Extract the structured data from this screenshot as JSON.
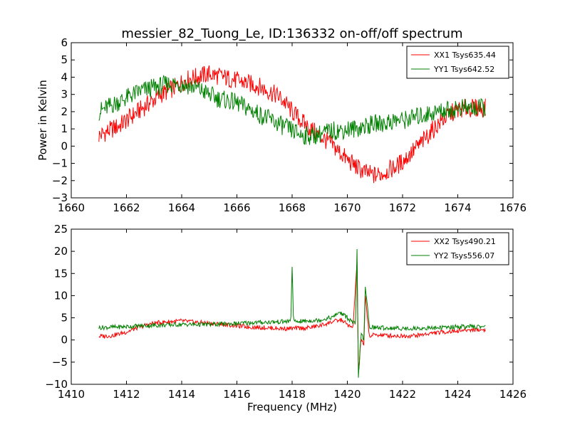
{
  "figure": {
    "title": "messier_82_Tuong_Le, ID:136332 on-off/off spectrum",
    "xlabel": "Frequency (MHz)"
  },
  "chart_data": [
    {
      "type": "line",
      "title": "messier_82_Tuong_Le, ID:136332 on-off/off spectrum",
      "xlabel": "",
      "ylabel": "Power in Kelvin",
      "xlim": [
        1660,
        1676
      ],
      "ylim": [
        -3,
        6
      ],
      "xticks": [
        1660,
        1662,
        1664,
        1666,
        1668,
        1670,
        1672,
        1674,
        1676
      ],
      "yticks": [
        -3,
        -2,
        -1,
        0,
        1,
        2,
        3,
        4,
        5,
        6
      ],
      "grid": false,
      "legend_position": "top-right",
      "series": [
        {
          "name": "XX1 Tsys635.44",
          "color": "#ff0000",
          "x": [
            1661.0,
            1661.25,
            1661.5,
            1661.75,
            1662.0,
            1662.25,
            1662.5,
            1662.75,
            1663.0,
            1663.25,
            1663.5,
            1663.75,
            1664.0,
            1664.25,
            1664.5,
            1664.75,
            1665.0,
            1665.25,
            1665.5,
            1665.75,
            1666.0,
            1666.25,
            1666.5,
            1666.75,
            1667.0,
            1667.25,
            1667.5,
            1667.75,
            1668.0,
            1668.25,
            1668.5,
            1668.75,
            1669.0,
            1669.25,
            1669.5,
            1669.75,
            1670.0,
            1670.25,
            1670.5,
            1670.75,
            1671.0,
            1671.25,
            1671.5,
            1671.75,
            1672.0,
            1672.25,
            1672.5,
            1672.75,
            1673.0,
            1673.25,
            1673.5,
            1673.75,
            1674.0,
            1674.25,
            1674.5,
            1674.75,
            1675.0
          ],
          "y": [
            0.6,
            0.8,
            1.0,
            1.2,
            1.5,
            1.8,
            2.1,
            2.4,
            2.7,
            3.0,
            3.2,
            3.4,
            3.7,
            3.9,
            4.0,
            4.1,
            4.2,
            4.1,
            4.0,
            3.9,
            3.8,
            3.7,
            3.6,
            3.5,
            3.3,
            3.1,
            2.9,
            2.5,
            2.0,
            1.6,
            1.2,
            0.9,
            0.6,
            0.3,
            0.0,
            -0.4,
            -0.8,
            -1.1,
            -1.4,
            -1.6,
            -1.7,
            -1.6,
            -1.4,
            -1.2,
            -0.9,
            -0.5,
            -0.1,
            0.3,
            0.8,
            1.2,
            1.6,
            1.9,
            2.1,
            2.2,
            2.2,
            2.2,
            2.2
          ]
        },
        {
          "name": "YY1 Tsys642.52",
          "color": "#008000",
          "x": [
            1661.0,
            1661.25,
            1661.5,
            1661.75,
            1662.0,
            1662.25,
            1662.5,
            1662.75,
            1663.0,
            1663.25,
            1663.5,
            1663.75,
            1664.0,
            1664.25,
            1664.5,
            1664.75,
            1665.0,
            1665.25,
            1665.5,
            1665.75,
            1666.0,
            1666.25,
            1666.5,
            1666.75,
            1667.0,
            1667.25,
            1667.5,
            1667.75,
            1668.0,
            1668.25,
            1668.5,
            1668.75,
            1669.0,
            1669.25,
            1669.5,
            1669.75,
            1670.0,
            1670.25,
            1670.5,
            1670.75,
            1671.0,
            1671.25,
            1671.5,
            1671.75,
            1672.0,
            1672.25,
            1672.5,
            1672.75,
            1673.0,
            1673.25,
            1673.5,
            1673.75,
            1674.0,
            1674.25,
            1674.5,
            1674.75,
            1675.0
          ],
          "y": [
            2.0,
            2.2,
            2.4,
            2.6,
            2.8,
            3.0,
            3.2,
            3.3,
            3.4,
            3.5,
            3.6,
            3.6,
            3.6,
            3.5,
            3.4,
            3.2,
            3.0,
            2.8,
            2.7,
            2.6,
            2.5,
            2.3,
            2.1,
            1.9,
            1.7,
            1.5,
            1.3,
            1.1,
            0.9,
            0.7,
            0.6,
            0.6,
            0.7,
            0.8,
            0.9,
            0.9,
            1.0,
            1.0,
            1.1,
            1.2,
            1.3,
            1.3,
            1.4,
            1.5,
            1.5,
            1.6,
            1.7,
            1.8,
            1.9,
            2.0,
            2.1,
            2.1,
            2.2,
            2.2,
            2.2,
            2.2,
            2.2
          ]
        }
      ]
    },
    {
      "type": "line",
      "title": "",
      "xlabel": "Frequency (MHz)",
      "ylabel": "",
      "xlim": [
        1410,
        1426
      ],
      "ylim": [
        -10,
        25
      ],
      "xticks": [
        1410,
        1412,
        1414,
        1416,
        1418,
        1420,
        1422,
        1424,
        1426
      ],
      "yticks": [
        -10,
        -5,
        0,
        5,
        10,
        15,
        20,
        25
      ],
      "grid": false,
      "legend_position": "top-right",
      "series": [
        {
          "name": "XX2 Tsys490.21",
          "color": "#ff0000",
          "x": [
            1411.0,
            1411.5,
            1412.0,
            1412.5,
            1413.0,
            1413.5,
            1414.0,
            1414.5,
            1415.0,
            1415.5,
            1416.0,
            1416.5,
            1417.0,
            1417.5,
            1418.0,
            1418.5,
            1419.0,
            1419.5,
            1419.8,
            1420.0,
            1420.2,
            1420.35,
            1420.4,
            1420.5,
            1420.6,
            1420.65,
            1420.8,
            1421.0,
            1421.5,
            1422.0,
            1422.5,
            1423.0,
            1423.5,
            1424.0,
            1424.5,
            1425.0
          ],
          "y": [
            0.8,
            1.0,
            1.8,
            3.0,
            3.8,
            4.1,
            4.3,
            4.0,
            3.8,
            3.5,
            3.2,
            2.9,
            2.8,
            2.6,
            2.6,
            2.7,
            3.2,
            4.2,
            4.5,
            3.5,
            2.5,
            17.5,
            -8.0,
            0.5,
            -1.5,
            10.0,
            0.8,
            1.2,
            1.0,
            0.9,
            1.0,
            1.5,
            1.8,
            2.1,
            2.3,
            2.3
          ]
        },
        {
          "name": "YY2 Tsys556.07",
          "color": "#008000",
          "x": [
            1411.0,
            1411.5,
            1412.0,
            1412.5,
            1413.0,
            1413.5,
            1414.0,
            1414.5,
            1415.0,
            1415.5,
            1416.0,
            1416.5,
            1417.0,
            1417.5,
            1417.95,
            1418.0,
            1418.05,
            1418.5,
            1419.0,
            1419.5,
            1419.7,
            1419.9,
            1420.1,
            1420.3,
            1420.35,
            1420.4,
            1420.5,
            1420.6,
            1420.65,
            1420.8,
            1421.0,
            1421.5,
            1422.0,
            1422.5,
            1423.0,
            1423.5,
            1424.0,
            1424.5,
            1425.0
          ],
          "y": [
            2.8,
            2.9,
            3.0,
            3.2,
            3.3,
            3.4,
            3.5,
            3.5,
            3.5,
            3.6,
            3.7,
            3.9,
            4.0,
            4.1,
            4.2,
            16.5,
            4.1,
            4.3,
            4.5,
            5.2,
            6.3,
            5.5,
            4.5,
            3.5,
            20.5,
            -8.5,
            2.0,
            -0.5,
            12.0,
            3.0,
            2.8,
            2.7,
            2.6,
            2.6,
            2.7,
            2.8,
            3.0,
            3.0,
            3.0
          ]
        }
      ]
    }
  ]
}
